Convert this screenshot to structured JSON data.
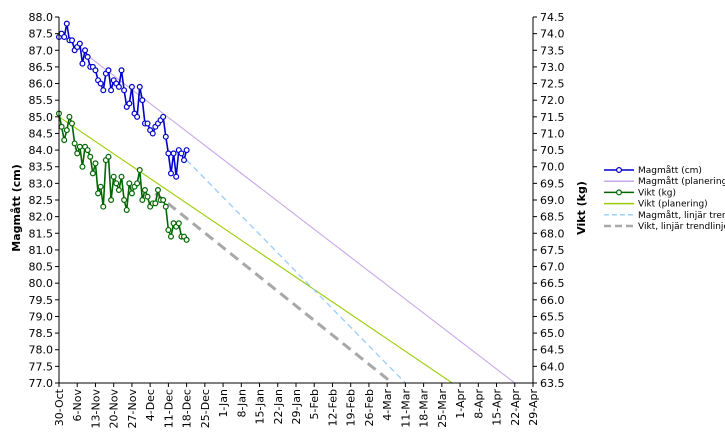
{
  "chart_data": {
    "type": "line",
    "title": "",
    "ylabel": "Magmått (cm)",
    "y2label": "Vikt (kg)",
    "xlabel": "",
    "ylim": [
      77.0,
      88.0
    ],
    "y2lim": [
      63.5,
      74.5
    ],
    "xlim": [
      "2011-10-30",
      "2012-04-29"
    ],
    "x_ticks": [
      "30-Oct",
      "6-Nov",
      "13-Nov",
      "20-Nov",
      "27-Nov",
      "4-Dec",
      "11-Dec",
      "18-Dec",
      "25-Dec",
      "1-Jan",
      "8-Jan",
      "15-Jan",
      "22-Jan",
      "29-Jan",
      "5-Feb",
      "12-Feb",
      "19-Feb",
      "26-Feb",
      "4-Mar",
      "11-Mar",
      "18-Mar",
      "25-Mar",
      "1-Apr",
      "8-Apr",
      "15-Apr",
      "22-Apr",
      "29-Apr"
    ],
    "y_ticks": [
      "77.0",
      "77.5",
      "78.0",
      "78.5",
      "79.0",
      "79.5",
      "80.0",
      "80.5",
      "81.0",
      "81.5",
      "82.0",
      "82.5",
      "83.0",
      "83.5",
      "84.0",
      "84.5",
      "85.0",
      "85.5",
      "86.0",
      "86.5",
      "87.0",
      "87.5",
      "88.0"
    ],
    "y2_ticks": [
      "63.5",
      "64.0",
      "64.5",
      "65.0",
      "65.5",
      "66.0",
      "66.5",
      "67.0",
      "67.5",
      "68.0",
      "68.5",
      "69.0",
      "69.5",
      "70.0",
      "70.5",
      "71.0",
      "71.5",
      "72.0",
      "72.5",
      "73.0",
      "73.5",
      "74.0",
      "74.5"
    ],
    "grid": false,
    "legend_position": "right",
    "series": [
      {
        "name": "Magmått (cm)",
        "axis": "left",
        "style": "line-marker",
        "color": "#0000cc",
        "marker_fill": "#ffffff",
        "x": [
          "2011-10-30",
          "2011-10-31",
          "2011-11-01",
          "2011-11-02",
          "2011-11-03",
          "2011-11-04",
          "2011-11-05",
          "2011-11-06",
          "2011-11-07",
          "2011-11-08",
          "2011-11-09",
          "2011-11-10",
          "2011-11-11",
          "2011-11-12",
          "2011-11-13",
          "2011-11-14",
          "2011-11-15",
          "2011-11-16",
          "2011-11-17",
          "2011-11-18",
          "2011-11-19",
          "2011-11-20",
          "2011-11-21",
          "2011-11-22",
          "2011-11-23",
          "2011-11-24",
          "2011-11-25",
          "2011-11-26",
          "2011-11-27",
          "2011-11-28",
          "2011-11-29",
          "2011-11-30",
          "2011-12-01",
          "2011-12-02",
          "2011-12-03",
          "2011-12-04",
          "2011-12-05",
          "2011-12-06",
          "2011-12-07",
          "2011-12-08",
          "2011-12-09",
          "2011-12-10",
          "2011-12-11",
          "2011-12-12",
          "2011-12-13",
          "2011-12-14",
          "2011-12-15",
          "2011-12-16",
          "2011-12-17",
          "2011-12-18"
        ],
        "y": [
          87.4,
          87.5,
          87.4,
          87.8,
          87.3,
          87.3,
          87.0,
          87.1,
          87.2,
          86.6,
          87.0,
          86.8,
          86.5,
          86.5,
          86.4,
          86.1,
          86.0,
          85.8,
          86.3,
          86.4,
          85.8,
          86.1,
          86.0,
          85.9,
          86.4,
          85.8,
          85.3,
          85.4,
          85.9,
          85.1,
          85.0,
          85.9,
          85.5,
          84.8,
          84.8,
          84.6,
          84.5,
          84.7,
          84.8,
          84.9,
          85.0,
          84.4,
          83.9,
          83.3,
          83.9,
          83.2,
          84.0,
          83.9,
          83.7,
          84.0
        ]
      },
      {
        "name": "Magmått (planering)",
        "axis": "left",
        "style": "line",
        "color": "#c9a8e8",
        "x": [
          "2011-10-30",
          "2012-04-22"
        ],
        "y": [
          87.5,
          77.0
        ]
      },
      {
        "name": "Vikt (kg)",
        "axis": "right",
        "style": "line-marker",
        "color": "#006600",
        "marker_fill": "#ffffff",
        "x": [
          "2011-10-30",
          "2011-10-31",
          "2011-11-01",
          "2011-11-02",
          "2011-11-03",
          "2011-11-04",
          "2011-11-05",
          "2011-11-06",
          "2011-11-07",
          "2011-11-08",
          "2011-11-09",
          "2011-11-10",
          "2011-11-11",
          "2011-11-12",
          "2011-11-13",
          "2011-11-14",
          "2011-11-15",
          "2011-11-16",
          "2011-11-17",
          "2011-11-18",
          "2011-11-19",
          "2011-11-20",
          "2011-11-21",
          "2011-11-22",
          "2011-11-23",
          "2011-11-24",
          "2011-11-25",
          "2011-11-26",
          "2011-11-27",
          "2011-11-28",
          "2011-11-29",
          "2011-11-30",
          "2011-12-01",
          "2011-12-02",
          "2011-12-03",
          "2011-12-04",
          "2011-12-05",
          "2011-12-06",
          "2011-12-07",
          "2011-12-08",
          "2011-12-09",
          "2011-12-10",
          "2011-12-11",
          "2011-12-12",
          "2011-12-13",
          "2011-12-14",
          "2011-12-15",
          "2011-12-16",
          "2011-12-17",
          "2011-12-18"
        ],
        "y": [
          71.6,
          71.2,
          70.8,
          71.1,
          71.5,
          71.3,
          70.7,
          70.4,
          70.6,
          70.0,
          70.6,
          70.5,
          70.3,
          69.8,
          70.1,
          69.2,
          69.4,
          68.8,
          70.2,
          70.3,
          69.0,
          69.7,
          69.5,
          69.3,
          69.7,
          69.0,
          68.7,
          69.5,
          69.2,
          69.4,
          69.5,
          69.9,
          69.0,
          69.3,
          69.1,
          68.8,
          68.9,
          68.9,
          69.3,
          69.0,
          69.0,
          68.8,
          68.1,
          67.9,
          68.3,
          68.2,
          68.3,
          67.9,
          67.9,
          67.8
        ]
      },
      {
        "name": "Vikt (planering)",
        "axis": "right",
        "style": "line",
        "color": "#99cc00",
        "x": [
          "2011-10-30",
          "2012-03-29"
        ],
        "y": [
          71.5,
          63.5
        ]
      },
      {
        "name": "Magmått, linjär trend",
        "axis": "left",
        "style": "dash",
        "color": "#99ccff",
        "x": [
          "2011-12-18",
          "2012-03-11"
        ],
        "y": [
          83.7,
          77.0
        ]
      },
      {
        "name": "Vikt, linjär trendlinje",
        "axis": "right",
        "style": "dash",
        "color": "#a8a8a8",
        "x": [
          "2011-12-06",
          "2012-03-06"
        ],
        "y": [
          69.2,
          63.5
        ]
      }
    ]
  }
}
